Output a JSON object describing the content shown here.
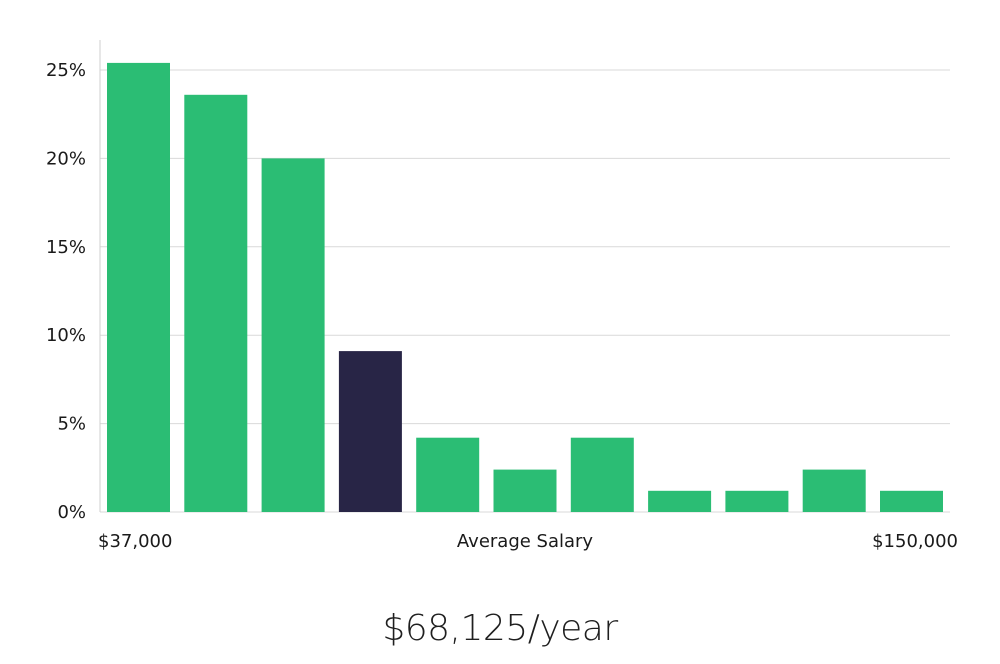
{
  "chart_data": {
    "type": "bar",
    "x_start_label": "$37,000",
    "x_center_label": "Average Salary",
    "x_end_label": "$150,000",
    "yticks": [
      "0%",
      "5%",
      "10%",
      "15%",
      "20%",
      "25%"
    ],
    "ylim": [
      0,
      26
    ],
    "grid": true,
    "values": [
      25.4,
      23.6,
      20.0,
      9.1,
      4.2,
      2.4,
      4.2,
      1.2,
      1.2,
      2.4,
      1.2
    ],
    "highlight_index": 3,
    "colors": {
      "bar": "#2bbd74",
      "highlight": "#282546",
      "grid": "#d9d9d9",
      "axis": "#cfcfcf"
    }
  },
  "summary": {
    "average_salary": "$68,125/year"
  }
}
